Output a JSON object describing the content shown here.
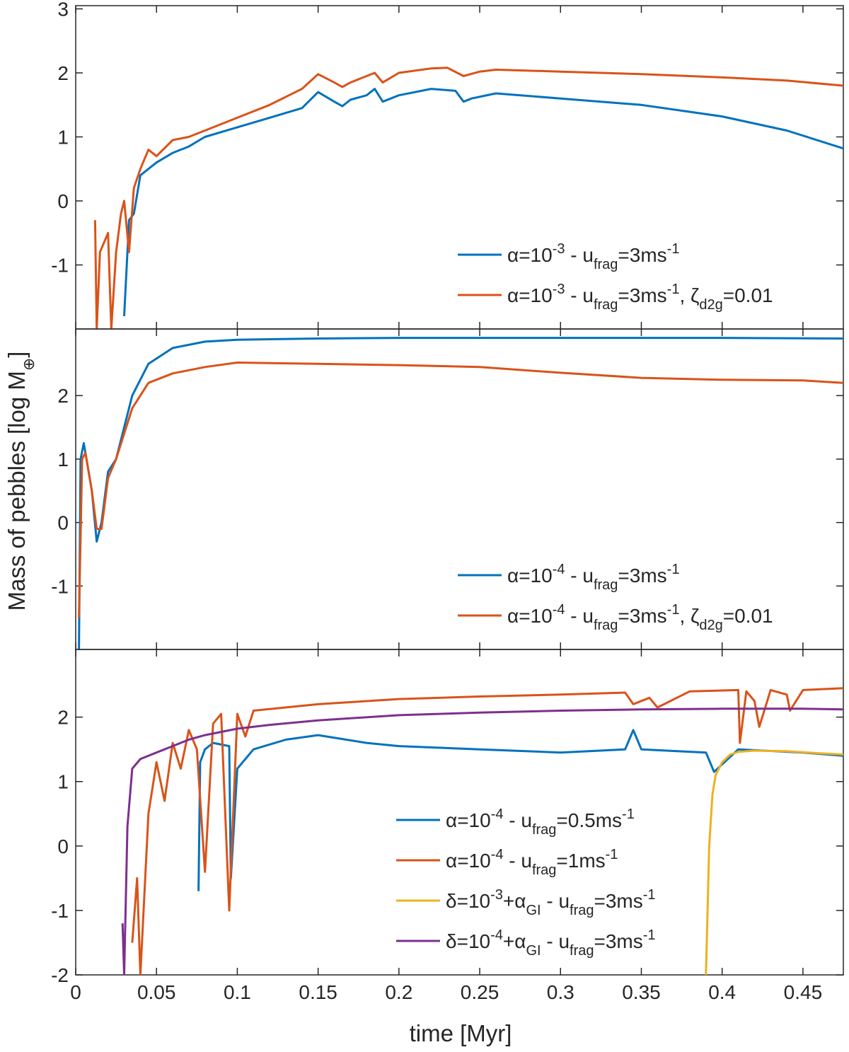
{
  "chart_data": {
    "type": "line",
    "ylabel": "Mass of pebbles [log M",
    "ylabel_sub": "⊕",
    "ylabel_close": "]",
    "xlabel": "time [Myr]",
    "xlim": [
      0,
      0.475
    ],
    "x_ticks": [
      "0",
      "0.05",
      "0.1",
      "0.15",
      "0.2",
      "0.25",
      "0.3",
      "0.35",
      "0.4",
      "0.45"
    ],
    "colors": {
      "blue": "#0072BD",
      "orange": "#D95319",
      "yellow": "#EDB120",
      "purple": "#7E2F8E"
    },
    "panels": [
      {
        "ylim": [
          -2,
          3.05
        ],
        "y_ticks": [
          "-1",
          "0",
          "1",
          "2",
          "3"
        ],
        "legend_position": "bottom-right",
        "series": [
          {
            "color": "blue",
            "legend": {
              "a": "α=10",
              "b": "-3",
              "c": " - u",
              "d": "frag",
              "e": "=3ms",
              "f": "-1",
              "g": "",
              "h": "",
              "i": ""
            },
            "points": [
              [
                0.03,
                -1.8
              ],
              [
                0.033,
                -0.3
              ],
              [
                0.036,
                -0.2
              ],
              [
                0.04,
                0.4
              ],
              [
                0.05,
                0.6
              ],
              [
                0.06,
                0.75
              ],
              [
                0.07,
                0.85
              ],
              [
                0.08,
                1.0
              ],
              [
                0.1,
                1.15
              ],
              [
                0.12,
                1.3
              ],
              [
                0.14,
                1.45
              ],
              [
                0.15,
                1.7
              ],
              [
                0.16,
                1.55
              ],
              [
                0.165,
                1.48
              ],
              [
                0.17,
                1.58
              ],
              [
                0.18,
                1.65
              ],
              [
                0.185,
                1.75
              ],
              [
                0.19,
                1.55
              ],
              [
                0.2,
                1.65
              ],
              [
                0.22,
                1.75
              ],
              [
                0.235,
                1.72
              ],
              [
                0.24,
                1.55
              ],
              [
                0.245,
                1.6
              ],
              [
                0.26,
                1.68
              ],
              [
                0.3,
                1.6
              ],
              [
                0.35,
                1.5
              ],
              [
                0.4,
                1.32
              ],
              [
                0.44,
                1.1
              ],
              [
                0.475,
                0.82
              ]
            ]
          },
          {
            "color": "orange",
            "legend": {
              "a": "α=10",
              "b": "-3",
              "c": " - u",
              "d": "frag",
              "e": "=3ms",
              "f": "-1",
              "g": ", ζ",
              "h": "d2g",
              "i": "=0.01"
            },
            "points": [
              [
                0.012,
                -0.3
              ],
              [
                0.013,
                -2.0
              ],
              [
                0.015,
                -0.8
              ],
              [
                0.02,
                -0.5
              ],
              [
                0.022,
                -2.0
              ],
              [
                0.025,
                -0.8
              ],
              [
                0.028,
                -0.2
              ],
              [
                0.03,
                0.0
              ],
              [
                0.033,
                -0.8
              ],
              [
                0.036,
                0.2
              ],
              [
                0.04,
                0.5
              ],
              [
                0.045,
                0.8
              ],
              [
                0.05,
                0.7
              ],
              [
                0.06,
                0.95
              ],
              [
                0.07,
                1.0
              ],
              [
                0.08,
                1.1
              ],
              [
                0.1,
                1.3
              ],
              [
                0.12,
                1.5
              ],
              [
                0.14,
                1.75
              ],
              [
                0.15,
                1.98
              ],
              [
                0.16,
                1.85
              ],
              [
                0.165,
                1.78
              ],
              [
                0.17,
                1.85
              ],
              [
                0.18,
                1.95
              ],
              [
                0.185,
                2.0
              ],
              [
                0.19,
                1.85
              ],
              [
                0.2,
                2.0
              ],
              [
                0.22,
                2.07
              ],
              [
                0.23,
                2.08
              ],
              [
                0.24,
                1.95
              ],
              [
                0.25,
                2.02
              ],
              [
                0.26,
                2.05
              ],
              [
                0.3,
                2.02
              ],
              [
                0.35,
                1.98
              ],
              [
                0.4,
                1.93
              ],
              [
                0.44,
                1.88
              ],
              [
                0.475,
                1.8
              ]
            ]
          }
        ]
      },
      {
        "ylim": [
          -2,
          3.05
        ],
        "y_ticks": [
          "-1",
          "0",
          "1",
          "2"
        ],
        "legend_position": "bottom-right",
        "series": [
          {
            "color": "blue",
            "legend": {
              "a": "α=10",
              "b": "-4",
              "c": " - u",
              "d": "frag",
              "e": "=3ms",
              "f": "-1",
              "g": "",
              "h": "",
              "i": ""
            },
            "points": [
              [
                0.002,
                -2.0
              ],
              [
                0.003,
                1.0
              ],
              [
                0.005,
                1.25
              ],
              [
                0.008,
                0.8
              ],
              [
                0.01,
                0.5
              ],
              [
                0.013,
                -0.3
              ],
              [
                0.016,
                0.0
              ],
              [
                0.02,
                0.8
              ],
              [
                0.025,
                1.0
              ],
              [
                0.03,
                1.5
              ],
              [
                0.035,
                2.0
              ],
              [
                0.045,
                2.5
              ],
              [
                0.06,
                2.75
              ],
              [
                0.08,
                2.85
              ],
              [
                0.1,
                2.88
              ],
              [
                0.15,
                2.9
              ],
              [
                0.2,
                2.91
              ],
              [
                0.3,
                2.91
              ],
              [
                0.4,
                2.91
              ],
              [
                0.475,
                2.9
              ]
            ]
          },
          {
            "color": "orange",
            "legend": {
              "a": "α=10",
              "b": "-4",
              "c": " - u",
              "d": "frag",
              "e": "=3ms",
              "f": "-1",
              "g": ", ζ",
              "h": "d2g",
              "i": "=0.01"
            },
            "points": [
              [
                0.002,
                -1.5
              ],
              [
                0.004,
                1.0
              ],
              [
                0.006,
                1.1
              ],
              [
                0.01,
                0.5
              ],
              [
                0.013,
                -0.1
              ],
              [
                0.016,
                -0.1
              ],
              [
                0.02,
                0.7
              ],
              [
                0.025,
                1.0
              ],
              [
                0.03,
                1.4
              ],
              [
                0.035,
                1.8
              ],
              [
                0.045,
                2.2
              ],
              [
                0.06,
                2.35
              ],
              [
                0.08,
                2.45
              ],
              [
                0.1,
                2.52
              ],
              [
                0.15,
                2.5
              ],
              [
                0.2,
                2.48
              ],
              [
                0.25,
                2.45
              ],
              [
                0.3,
                2.36
              ],
              [
                0.35,
                2.28
              ],
              [
                0.4,
                2.25
              ],
              [
                0.45,
                2.24
              ],
              [
                0.475,
                2.2
              ]
            ]
          }
        ]
      },
      {
        "ylim": [
          -2,
          3.05
        ],
        "y_ticks": [
          "-2",
          "-1",
          "0",
          "1",
          "2"
        ],
        "legend_position": "bottom-right",
        "series": [
          {
            "color": "blue",
            "legend": {
              "a": "α=10",
              "b": "-4",
              "c": " - u",
              "d": "frag",
              "e": "=0.5ms",
              "f": "-1",
              "g": "",
              "h": "",
              "i": ""
            },
            "points": [
              [
                0.076,
                -0.7
              ],
              [
                0.077,
                1.3
              ],
              [
                0.08,
                1.5
              ],
              [
                0.085,
                1.6
              ],
              [
                0.095,
                1.55
              ],
              [
                0.096,
                -0.5
              ],
              [
                0.1,
                1.2
              ],
              [
                0.11,
                1.5
              ],
              [
                0.13,
                1.65
              ],
              [
                0.15,
                1.72
              ],
              [
                0.18,
                1.6
              ],
              [
                0.2,
                1.55
              ],
              [
                0.25,
                1.5
              ],
              [
                0.3,
                1.45
              ],
              [
                0.34,
                1.5
              ],
              [
                0.345,
                1.8
              ],
              [
                0.35,
                1.5
              ],
              [
                0.39,
                1.45
              ],
              [
                0.395,
                1.15
              ],
              [
                0.41,
                1.5
              ],
              [
                0.45,
                1.45
              ],
              [
                0.475,
                1.4
              ]
            ]
          },
          {
            "color": "orange",
            "legend": {
              "a": "α=10",
              "b": "-4",
              "c": " - u",
              "d": "frag",
              "e": "=1ms",
              "f": "-1",
              "g": "",
              "h": "",
              "i": ""
            },
            "points": [
              [
                0.035,
                -1.5
              ],
              [
                0.038,
                -0.5
              ],
              [
                0.04,
                -2.0
              ],
              [
                0.045,
                0.5
              ],
              [
                0.05,
                1.3
              ],
              [
                0.055,
                0.7
              ],
              [
                0.06,
                1.6
              ],
              [
                0.065,
                1.2
              ],
              [
                0.07,
                1.8
              ],
              [
                0.075,
                1.5
              ],
              [
                0.08,
                -0.4
              ],
              [
                0.085,
                1.9
              ],
              [
                0.09,
                2.05
              ],
              [
                0.095,
                -1.0
              ],
              [
                0.1,
                2.05
              ],
              [
                0.105,
                1.7
              ],
              [
                0.11,
                2.1
              ],
              [
                0.15,
                2.2
              ],
              [
                0.2,
                2.28
              ],
              [
                0.25,
                2.32
              ],
              [
                0.3,
                2.35
              ],
              [
                0.34,
                2.38
              ],
              [
                0.345,
                2.2
              ],
              [
                0.355,
                2.3
              ],
              [
                0.36,
                2.15
              ],
              [
                0.38,
                2.4
              ],
              [
                0.41,
                2.42
              ],
              [
                0.411,
                1.6
              ],
              [
                0.415,
                2.4
              ],
              [
                0.42,
                2.25
              ],
              [
                0.423,
                1.85
              ],
              [
                0.43,
                2.42
              ],
              [
                0.44,
                2.35
              ],
              [
                0.442,
                2.1
              ],
              [
                0.45,
                2.42
              ],
              [
                0.475,
                2.45
              ]
            ]
          },
          {
            "color": "yellow",
            "legend": {
              "a": "δ=10",
              "b": "-3",
              "c": "+α",
              "d": "GI",
              "e": " - u",
              "f": "frag",
              "g": "=3ms",
              "h": "-1",
              "i": ""
            },
            "points": [
              [
                0.39,
                -2.0
              ],
              [
                0.392,
                0.0
              ],
              [
                0.394,
                0.8
              ],
              [
                0.396,
                1.1
              ],
              [
                0.4,
                1.3
              ],
              [
                0.405,
                1.42
              ],
              [
                0.41,
                1.46
              ],
              [
                0.42,
                1.48
              ],
              [
                0.44,
                1.47
              ],
              [
                0.46,
                1.44
              ],
              [
                0.475,
                1.42
              ]
            ]
          },
          {
            "color": "purple",
            "legend": {
              "a": "δ=10",
              "b": "-4",
              "c": "+α",
              "d": "GI",
              "e": " - u",
              "f": "frag",
              "g": "=3ms",
              "h": "-1",
              "i": ""
            },
            "points": [
              [
                0.029,
                -1.2
              ],
              [
                0.03,
                -2.0
              ],
              [
                0.032,
                0.3
              ],
              [
                0.035,
                1.2
              ],
              [
                0.04,
                1.35
              ],
              [
                0.05,
                1.45
              ],
              [
                0.06,
                1.55
              ],
              [
                0.07,
                1.65
              ],
              [
                0.08,
                1.72
              ],
              [
                0.1,
                1.82
              ],
              [
                0.12,
                1.88
              ],
              [
                0.15,
                1.95
              ],
              [
                0.2,
                2.03
              ],
              [
                0.25,
                2.07
              ],
              [
                0.3,
                2.1
              ],
              [
                0.35,
                2.12
              ],
              [
                0.4,
                2.13
              ],
              [
                0.45,
                2.13
              ],
              [
                0.475,
                2.12
              ]
            ]
          }
        ]
      }
    ]
  }
}
